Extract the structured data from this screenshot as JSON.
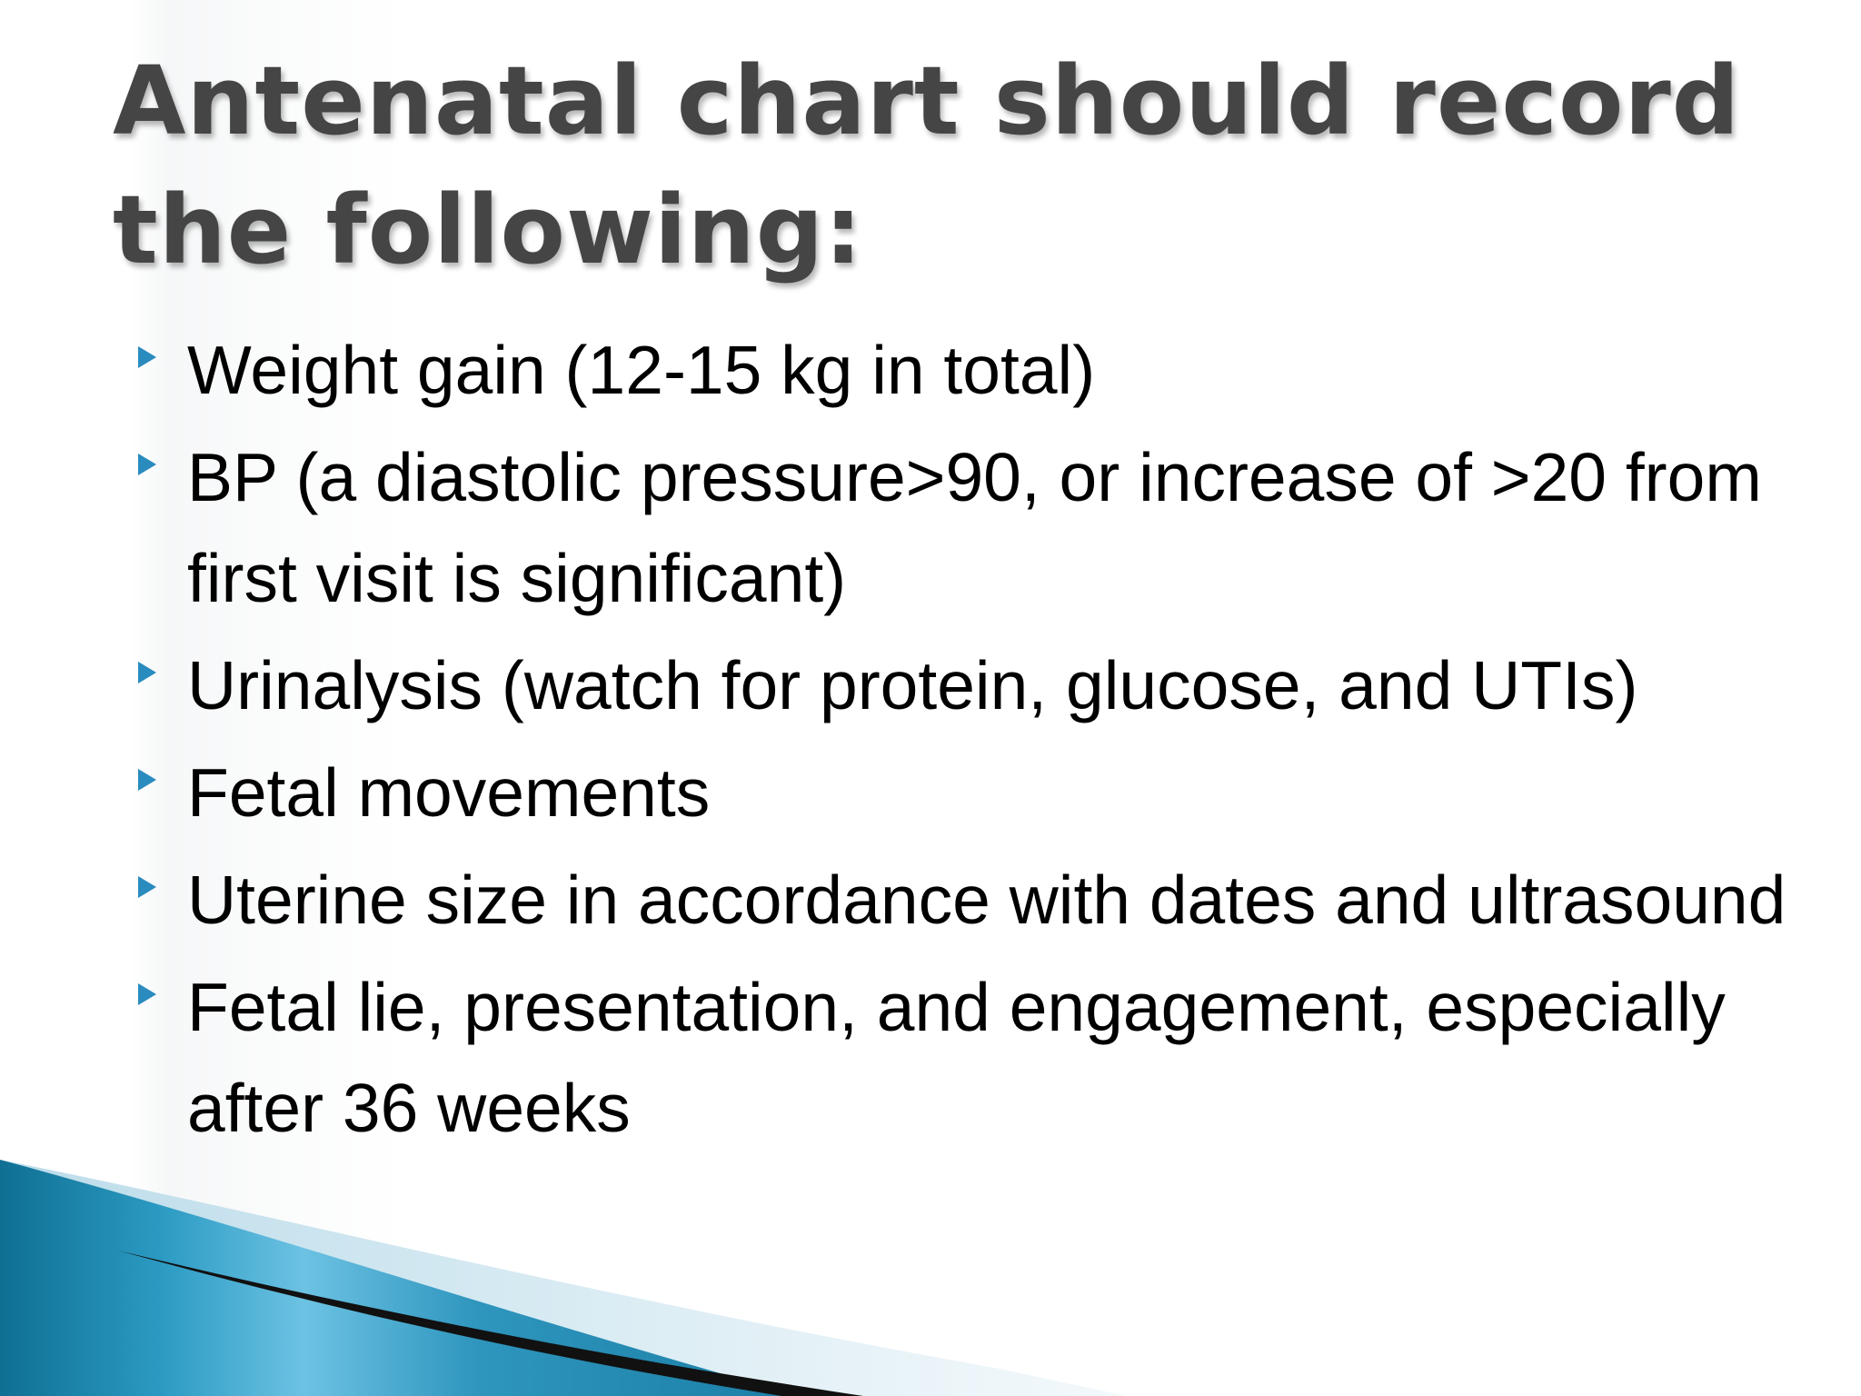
{
  "slide": {
    "title": "Antenatal chart should record the following:",
    "bullets": [
      {
        "text": "Weight gain (12-15 kg in total)"
      },
      {
        "text": "BP (a diastolic pressure>90, or increase of >20 from first visit is significant)"
      },
      {
        "text": "Urinalysis (watch for protein, glucose, and UTIs)"
      },
      {
        "text": "Fetal movements"
      },
      {
        "text": "Uterine size in accordance with dates and ultrasound"
      },
      {
        "text": "Fetal lie, presentation, and engagement, especially after 36 weeks"
      }
    ],
    "bullet_icon": "triangle-bullet-icon",
    "colors": {
      "title": "#454545",
      "text": "#000000",
      "bullet": "#2a8bbf",
      "accent_teal": "#1f88ad",
      "accent_light": "#74c3e2"
    }
  }
}
